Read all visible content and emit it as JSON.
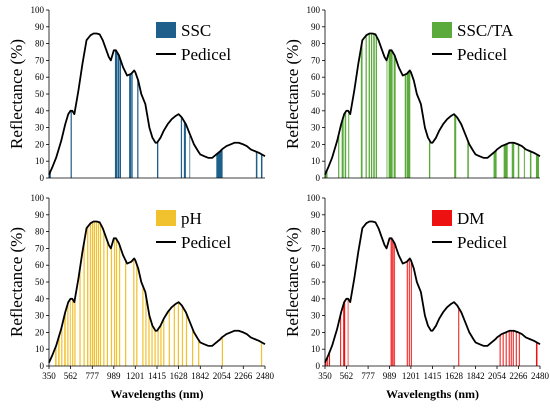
{
  "figure": {
    "shared_curve": {
      "name": "Pedicel",
      "x": [
        350,
        380,
        420,
        470,
        510,
        540,
        562,
        580,
        600,
        640,
        680,
        720,
        760,
        790,
        820,
        850,
        880,
        910,
        940,
        960,
        989,
        1010,
        1040,
        1080,
        1120,
        1160,
        1190,
        1201,
        1230,
        1260,
        1300,
        1340,
        1370,
        1400,
        1415,
        1450,
        1480,
        1520,
        1560,
        1600,
        1628,
        1660,
        1700,
        1740,
        1780,
        1820,
        1842,
        1880,
        1920,
        1960,
        2000,
        2040,
        2054,
        2100,
        2140,
        2180,
        2220,
        2266,
        2300,
        2340,
        2380,
        2420,
        2450,
        2480
      ],
      "y": [
        2,
        6,
        12,
        22,
        32,
        38,
        40,
        40,
        38,
        52,
        68,
        82,
        85,
        86,
        86,
        85.5,
        82,
        77,
        72,
        70,
        76,
        76,
        73,
        66,
        61,
        62,
        64,
        63,
        58,
        50,
        44,
        30,
        24,
        21,
        21,
        24,
        28,
        32,
        35,
        37,
        38,
        36,
        32,
        26,
        20,
        16,
        14,
        13,
        12,
        12,
        14,
        16,
        17,
        19,
        20,
        21,
        21,
        20,
        19,
        17,
        16,
        15,
        14,
        13
      ]
    },
    "panels": [
      {
        "chart_data": {
          "type": "bar",
          "legend": [
            "SSC",
            "Pedicel"
          ],
          "bar_color": "#1f5f8b",
          "ylabel": "Reflectance  (%)",
          "ylim": [
            0,
            100
          ],
          "yticks": [
            0,
            10,
            20,
            30,
            40,
            50,
            60,
            70,
            80,
            90,
            100
          ],
          "xlim": [
            350,
            2480
          ],
          "bars": [
            [
              350,
              368
            ],
            [
              563,
              575
            ],
            [
              1000,
              1026
            ],
            [
              1030,
              1045
            ],
            [
              1049,
              1060
            ],
            [
              1140,
              1160
            ],
            [
              1162,
              1175
            ],
            [
              1220,
              1232
            ],
            [
              1415,
              1428
            ],
            [
              1650,
              1662
            ],
            [
              1680,
              1700
            ],
            [
              1735,
              1742
            ],
            [
              2000,
              2062
            ],
            [
              2390,
              2405
            ],
            [
              2440,
              2455
            ]
          ]
        }
      },
      {
        "chart_data": {
          "type": "bar",
          "legend": [
            "SSC/TA",
            "Pedicel"
          ],
          "bar_color": "#5aab3c",
          "ylabel": "Reflectance  (%)",
          "ylim": [
            0,
            100
          ],
          "yticks": [
            0,
            10,
            20,
            30,
            40,
            50,
            60,
            70,
            80,
            90,
            100
          ],
          "xlim": [
            350,
            2480
          ],
          "bars": [
            [
              350,
              375
            ],
            [
              480,
              492
            ],
            [
              515,
              535
            ],
            [
              545,
              560
            ],
            [
              580,
              590
            ],
            [
              705,
              722
            ],
            [
              752,
              764
            ],
            [
              782,
              795
            ],
            [
              805,
              818
            ],
            [
              828,
              843
            ],
            [
              852,
              865
            ],
            [
              960,
              968
            ],
            [
              980,
              1020
            ],
            [
              1030,
              1050
            ],
            [
              1140,
              1155
            ],
            [
              1160,
              1195
            ],
            [
              1380,
              1393
            ],
            [
              1630,
              1650
            ],
            [
              1760,
              1775
            ],
            [
              2020,
              2050
            ],
            [
              2120,
              2160
            ],
            [
              2200,
              2225
            ],
            [
              2260,
              2275
            ],
            [
              2320,
              2330
            ],
            [
              2380,
              2395
            ],
            [
              2440,
              2470
            ]
          ]
        }
      },
      {
        "chart_data": {
          "type": "bar",
          "legend": [
            "pH",
            "Pedicel"
          ],
          "bar_color": "#f2c12e",
          "xlabel": "Wavelengths (nm)",
          "ylabel": "Reflectance  (%)",
          "ylim": [
            0,
            100
          ],
          "yticks": [
            0,
            10,
            20,
            30,
            40,
            50,
            60,
            70,
            80,
            90,
            100
          ],
          "xlim": [
            350,
            2480
          ],
          "xticks": [
            350,
            562,
            777,
            989,
            1201,
            1415,
            1628,
            1842,
            2054,
            2266,
            2480
          ],
          "bars": [
            [
              410,
              425
            ],
            [
              440,
              455
            ],
            [
              470,
              482
            ],
            [
              500,
              515
            ],
            [
              530,
              542
            ],
            [
              555,
              565
            ],
            [
              578,
              590
            ],
            [
              600,
              612
            ],
            [
              650,
              662
            ],
            [
              690,
              702
            ],
            [
              725,
              738
            ],
            [
              752,
              764
            ],
            [
              772,
              786
            ],
            [
              792,
              804
            ],
            [
              812,
              824
            ],
            [
              832,
              844
            ],
            [
              852,
              864
            ],
            [
              885,
              897
            ],
            [
              920,
              932
            ],
            [
              960,
              972
            ],
            [
              990,
              1002
            ],
            [
              1010,
              1022
            ],
            [
              1040,
              1052
            ],
            [
              1100,
              1112
            ],
            [
              1180,
              1192
            ],
            [
              1210,
              1222
            ],
            [
              1270,
              1282
            ],
            [
              1300,
              1312
            ],
            [
              1330,
              1342
            ],
            [
              1360,
              1372
            ],
            [
              1390,
              1402
            ],
            [
              1420,
              1432
            ],
            [
              1448,
              1460
            ],
            [
              1476,
              1488
            ],
            [
              1530,
              1542
            ],
            [
              1580,
              1592
            ],
            [
              1620,
              1632
            ],
            [
              1660,
              1672
            ],
            [
              1700,
              1712
            ],
            [
              1760,
              1772
            ],
            [
              1820,
              1832
            ],
            [
              2054,
              2066
            ],
            [
              2440,
              2452
            ]
          ]
        }
      },
      {
        "chart_data": {
          "type": "bar",
          "legend": [
            "DM",
            "Pedicel"
          ],
          "bar_color": "#ee1111",
          "xlabel": "Wavelengths (nm)",
          "ylabel": "Reflectance  (%)",
          "ylim": [
            0,
            100
          ],
          "yticks": [
            0,
            10,
            20,
            30,
            40,
            50,
            60,
            70,
            80,
            90,
            100
          ],
          "xlim": [
            350,
            2480
          ],
          "xticks": [
            350,
            562,
            777,
            989,
            1201,
            1415,
            1628,
            1842,
            2054,
            2266,
            2480
          ],
          "bars": [
            [
              355,
              365
            ],
            [
              372,
              382
            ],
            [
              390,
              400
            ],
            [
              500,
              510
            ],
            [
              530,
              550
            ],
            [
              575,
              582
            ],
            [
              1000,
              1012
            ],
            [
              1016,
              1030
            ],
            [
              1036,
              1044
            ],
            [
              1160,
              1170
            ],
            [
              1180,
              1190
            ],
            [
              1200,
              1210
            ],
            [
              1670,
              1680
            ],
            [
              2080,
              2090
            ],
            [
              2110,
              2120
            ],
            [
              2140,
              2150
            ],
            [
              2170,
              2180
            ],
            [
              2190,
              2200
            ],
            [
              2210,
              2220
            ],
            [
              2240,
              2250
            ],
            [
              2270,
              2280
            ],
            [
              2440,
              2455
            ]
          ]
        }
      }
    ]
  }
}
